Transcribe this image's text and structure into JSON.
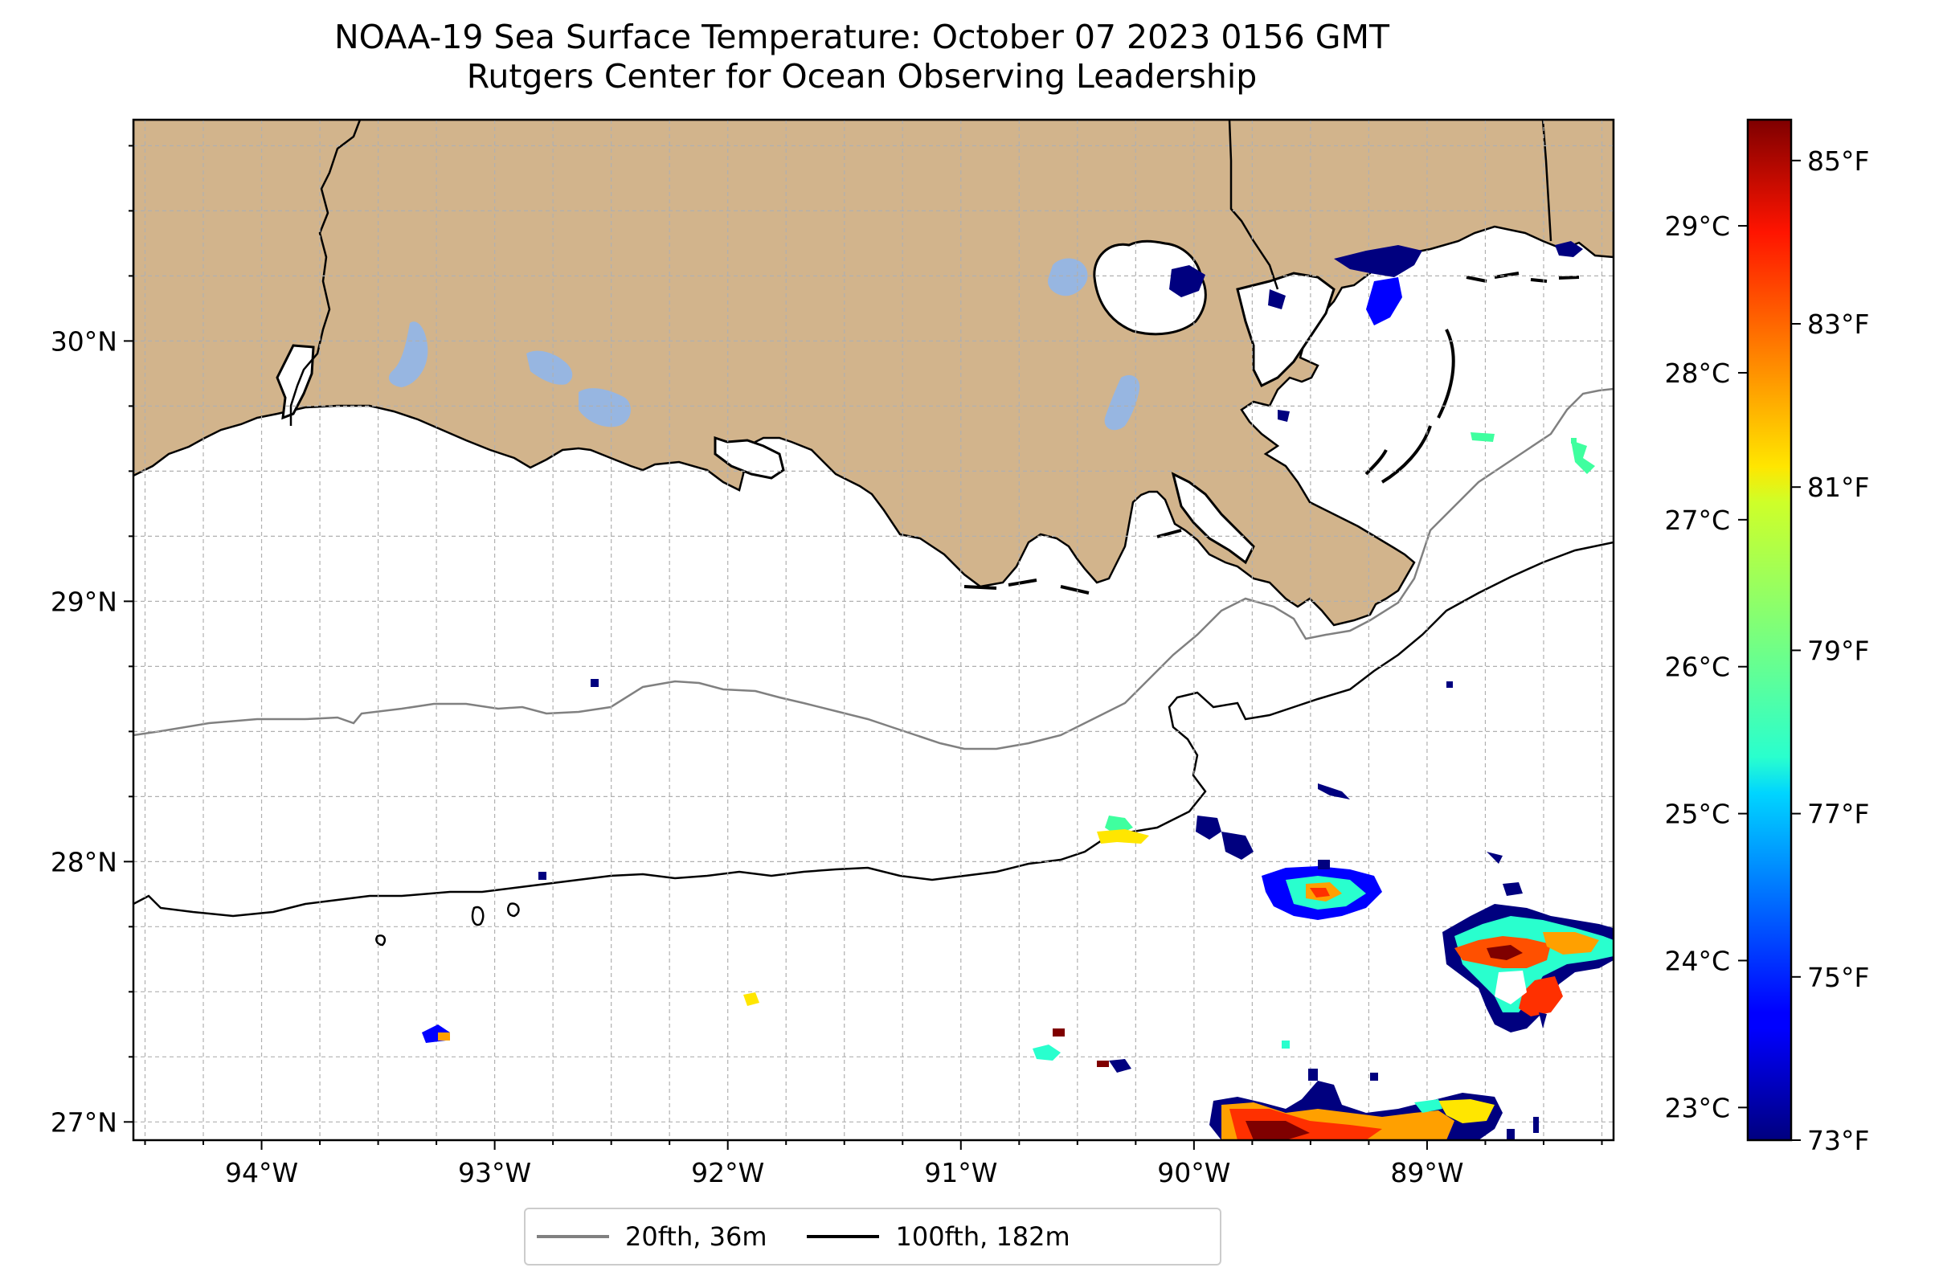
{
  "title": {
    "line1": "NOAA-19 Sea Surface Temperature: October 07 2023 0156 GMT",
    "line2": "Rutgers Center for Ocean Observing Leadership"
  },
  "map": {
    "lon_range": [
      -94.55,
      -88.2
    ],
    "lat_range": [
      26.93,
      30.85
    ],
    "lat_ticks": [
      {
        "value": 30,
        "label": "30°N"
      },
      {
        "value": 29,
        "label": "29°N"
      },
      {
        "value": 28,
        "label": "28°N"
      },
      {
        "value": 27,
        "label": "27°N"
      }
    ],
    "lon_ticks": [
      {
        "value": -94,
        "label": "94°W"
      },
      {
        "value": -93,
        "label": "93°W"
      },
      {
        "value": -92,
        "label": "92°W"
      },
      {
        "value": -91,
        "label": "91°W"
      },
      {
        "value": -90,
        "label": "90°W"
      },
      {
        "value": -89,
        "label": "89°W"
      }
    ],
    "colors": {
      "land": "#d2b48c",
      "lakes": "#97b6e1",
      "ocean": "#ffffff",
      "grid": "#b0b0b0",
      "contour_20fth": "#808080",
      "contour_100fth": "#000000"
    }
  },
  "legend": {
    "items": [
      {
        "label": "20fth, 36m",
        "color": "#808080"
      },
      {
        "label": "100fth, 182m",
        "color": "#000000"
      }
    ]
  },
  "colorbar": {
    "colormap": "jet",
    "min_f": 73,
    "max_f": 85.5,
    "celsius_ticks": [
      {
        "value": 23,
        "label": "23°C"
      },
      {
        "value": 24,
        "label": "24°C"
      },
      {
        "value": 25,
        "label": "25°C"
      },
      {
        "value": 26,
        "label": "26°C"
      },
      {
        "value": 27,
        "label": "27°C"
      },
      {
        "value": 28,
        "label": "28°C"
      },
      {
        "value": 29,
        "label": "29°C"
      }
    ],
    "fahrenheit_ticks": [
      {
        "value": 73,
        "label": "73°F"
      },
      {
        "value": 75,
        "label": "75°F"
      },
      {
        "value": 77,
        "label": "77°F"
      },
      {
        "value": 79,
        "label": "79°F"
      },
      {
        "value": 81,
        "label": "81°F"
      },
      {
        "value": 83,
        "label": "83°F"
      },
      {
        "value": 85,
        "label": "85°F"
      }
    ]
  }
}
